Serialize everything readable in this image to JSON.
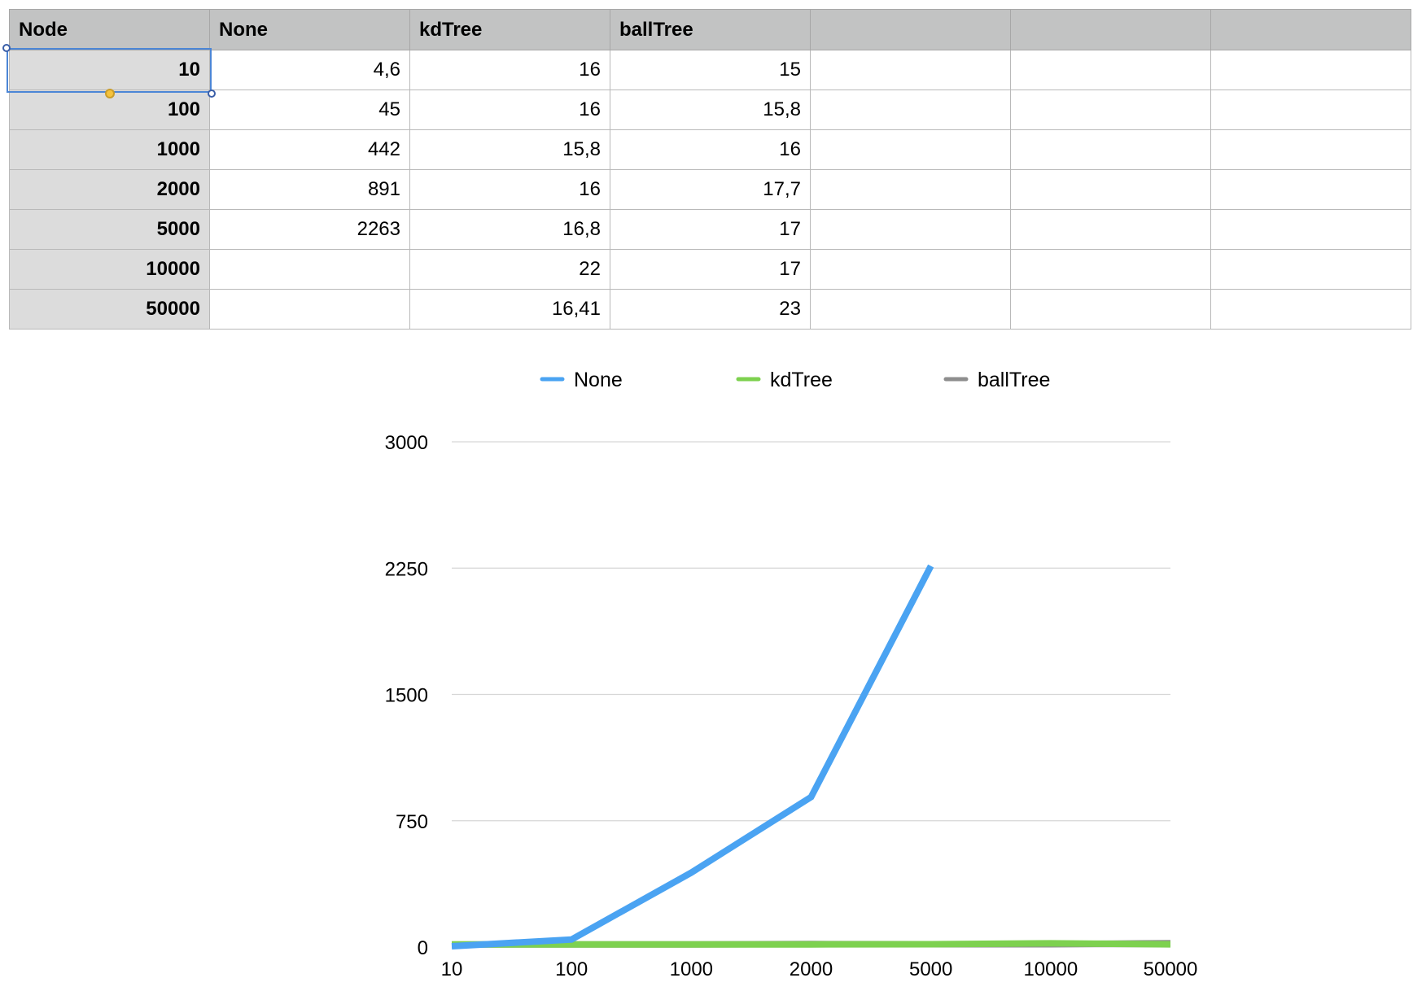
{
  "table": {
    "headers": [
      "Node",
      "None",
      "kdTree",
      "ballTree",
      "",
      "",
      ""
    ],
    "rows": [
      [
        "10",
        "4,6",
        "16",
        "15",
        "",
        "",
        ""
      ],
      [
        "100",
        "45",
        "16",
        "15,8",
        "",
        "",
        ""
      ],
      [
        "1000",
        "442",
        "15,8",
        "16",
        "",
        "",
        ""
      ],
      [
        "2000",
        "891",
        "16",
        "17,7",
        "",
        "",
        ""
      ],
      [
        "5000",
        "2263",
        "16,8",
        "17",
        "",
        "",
        ""
      ],
      [
        "10000",
        "",
        "22",
        "17",
        "",
        "",
        ""
      ],
      [
        "50000",
        "",
        "16,41",
        "23",
        "",
        "",
        ""
      ]
    ]
  },
  "chart_data": {
    "type": "line",
    "categories": [
      "10",
      "100",
      "1000",
      "2000",
      "5000",
      "10000",
      "50000"
    ],
    "series": [
      {
        "name": "None",
        "color": "#4aa3f2",
        "values": [
          4.6,
          45,
          442,
          891,
          2263,
          null,
          null
        ]
      },
      {
        "name": "kdTree",
        "color": "#7dd14f",
        "values": [
          16,
          16,
          15.8,
          16,
          16.8,
          22,
          16.41
        ]
      },
      {
        "name": "ballTree",
        "color": "#8e8e8e",
        "values": [
          15,
          15.8,
          16,
          17.7,
          17,
          17,
          23
        ]
      }
    ],
    "yticks": [
      0,
      750,
      1500,
      2250,
      3000
    ],
    "ylim": [
      0,
      3000
    ],
    "grid": true,
    "legend": "top-center",
    "title": "",
    "xlabel": "",
    "ylabel": ""
  }
}
